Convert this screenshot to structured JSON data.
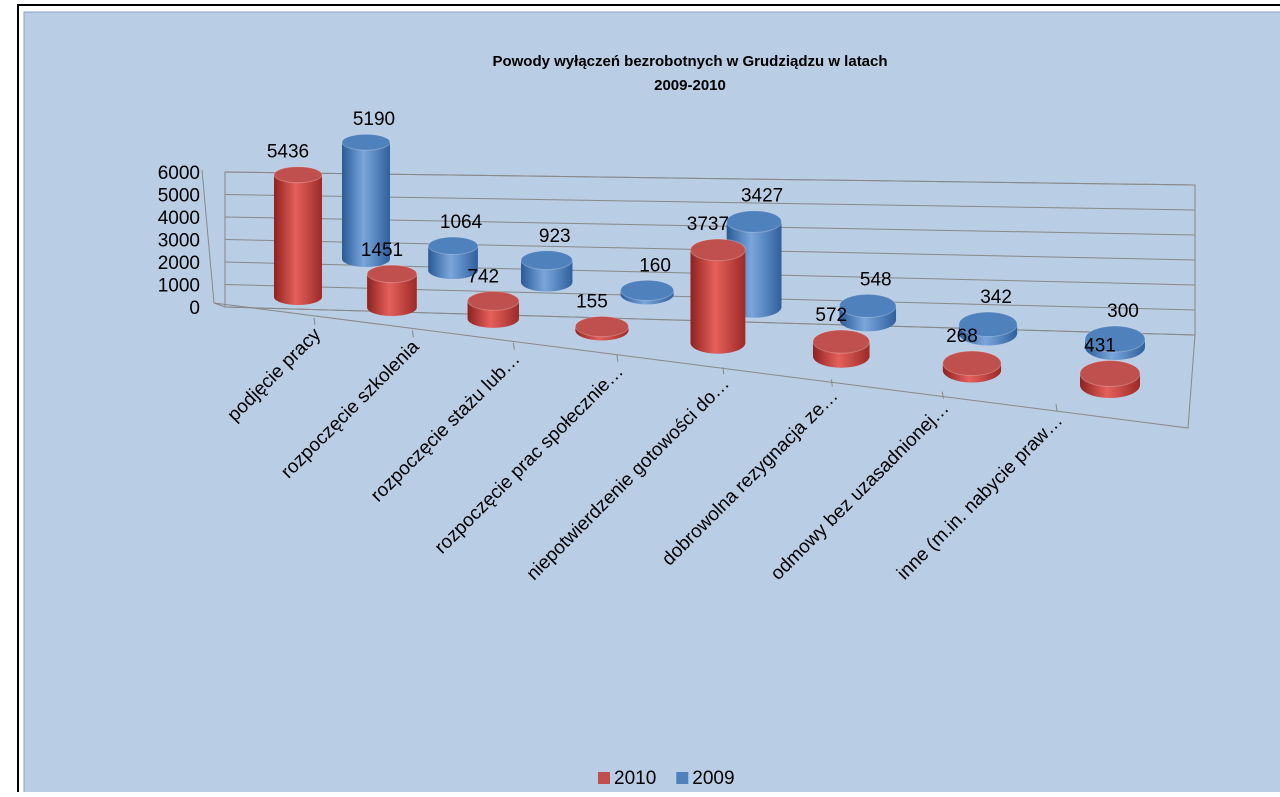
{
  "chart_data": {
    "type": "bar3d",
    "title": "Powody wyłączeń bezrobotnych w Grudziądzu w latach",
    "subtitle": "2009-2010",
    "categories": [
      "podjęcie pracy",
      "rozpoczęcie szkolenia",
      "rozpoczęcie stażu lub…",
      "rozpoczęcie prac społecznie…",
      "niepotwierdzenie gotowości do…",
      "dobrowolna rezygnacja ze…",
      "odmowy bez uzasadnionej…",
      "inne (m.in. nabycie praw…"
    ],
    "series": [
      {
        "name": "2010",
        "color": "#c0504d",
        "values": [
          5436,
          1451,
          742,
          155,
          3737,
          572,
          268,
          431
        ]
      },
      {
        "name": "2009",
        "color": "#4f81bd",
        "values": [
          5190,
          1064,
          923,
          160,
          3427,
          548,
          342,
          300
        ]
      }
    ],
    "ylim": [
      0,
      6000
    ],
    "yticks": [
      0,
      1000,
      2000,
      3000,
      4000,
      5000,
      6000
    ],
    "grid": true,
    "legend": "bottom"
  }
}
